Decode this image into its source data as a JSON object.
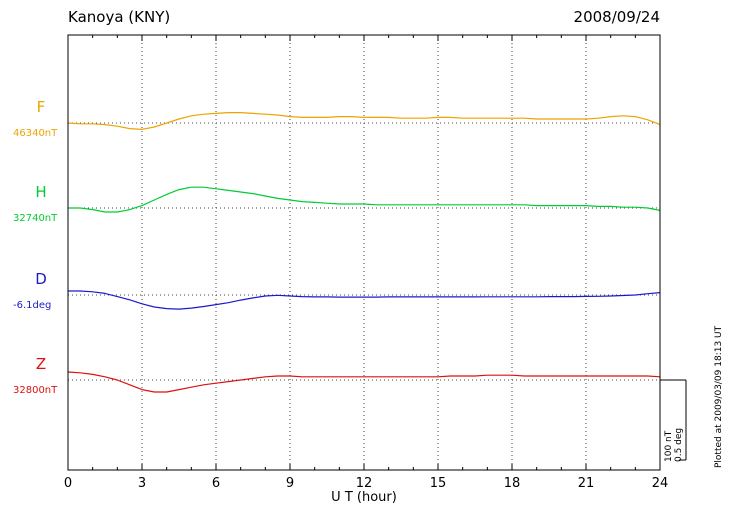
{
  "header": {
    "station": "Kanoya (KNY)",
    "date": "2008/09/24"
  },
  "footer": {
    "plotted_at": "Plotted at 2009/03/09 18:13 UT"
  },
  "scale_bar": {
    "nt": "100 nT",
    "deg": "0.5 deg"
  },
  "chart_data": {
    "type": "line",
    "title": "Kanoya (KNY) magnetogram 2008/09/24",
    "xlabel": "U T (hour)",
    "x_unit": "UT hour",
    "xlim": [
      0,
      24
    ],
    "x_ticks": [
      0,
      3,
      6,
      9,
      12,
      15,
      18,
      21,
      24
    ],
    "grid": "dotted vertical lines every 3 hours; dotted horizontal baseline per trace",
    "legend_position": "left-side colored labels",
    "values_are": "offsets from each trace baseline, nT for F/H/Z, degrees for D",
    "x": [
      0,
      0.5,
      1,
      1.5,
      2,
      2.5,
      3,
      3.5,
      4,
      4.5,
      5,
      5.5,
      6,
      6.5,
      7,
      7.5,
      8,
      8.5,
      9,
      9.5,
      10,
      10.5,
      11,
      11.5,
      12,
      12.5,
      13,
      13.5,
      14,
      14.5,
      15,
      15.5,
      16,
      16.5,
      17,
      17.5,
      18,
      18.5,
      19,
      19.5,
      20,
      20.5,
      21,
      21.5,
      22,
      22.5,
      23,
      23.5,
      24
    ],
    "series": [
      {
        "name": "F",
        "label": "F",
        "baseline_label": "46340nT",
        "baseline_value": 46340,
        "unit": "nT",
        "color": "#eda400",
        "values": [
          0,
          -1,
          -1,
          -2,
          -4,
          -7,
          -8,
          -5,
          0,
          5,
          9,
          11,
          12,
          13,
          13,
          12,
          11,
          10,
          8,
          7,
          7,
          7,
          8,
          8,
          7,
          7,
          7,
          6,
          6,
          6,
          7,
          7,
          6,
          6,
          6,
          6,
          6,
          6,
          5,
          5,
          5,
          5,
          5,
          6,
          8,
          9,
          8,
          4,
          -2
        ]
      },
      {
        "name": "H",
        "label": "H",
        "baseline_label": "32740nT",
        "baseline_value": 32740,
        "unit": "nT",
        "color": "#00cc33",
        "values": [
          0,
          0,
          -2,
          -5,
          -5,
          -2,
          3,
          10,
          17,
          23,
          26,
          26,
          24,
          22,
          20,
          18,
          15,
          12,
          10,
          8,
          7,
          6,
          5,
          5,
          5,
          4,
          4,
          4,
          4,
          4,
          4,
          4,
          4,
          4,
          4,
          4,
          4,
          4,
          3,
          3,
          3,
          3,
          3,
          2,
          2,
          1,
          1,
          0,
          -3
        ]
      },
      {
        "name": "D",
        "label": "D",
        "baseline_label": "-6.1deg",
        "baseline_value": -6.1,
        "unit": "deg",
        "color": "#1a1acc",
        "values": [
          0.025,
          0.025,
          0.02,
          0.01,
          -0.01,
          -0.03,
          -0.055,
          -0.075,
          -0.085,
          -0.088,
          -0.082,
          -0.072,
          -0.06,
          -0.048,
          -0.032,
          -0.018,
          -0.006,
          -0.002,
          -0.006,
          -0.01,
          -0.012,
          -0.012,
          -0.013,
          -0.013,
          -0.013,
          -0.013,
          -0.012,
          -0.012,
          -0.012,
          -0.012,
          -0.012,
          -0.012,
          -0.012,
          -0.012,
          -0.011,
          -0.011,
          -0.011,
          -0.011,
          -0.011,
          -0.01,
          -0.01,
          -0.01,
          -0.009,
          -0.008,
          -0.006,
          -0.003,
          0.0,
          0.008,
          0.015
        ]
      },
      {
        "name": "Z",
        "label": "Z",
        "baseline_label": "32800nT",
        "baseline_value": 32800,
        "unit": "nT",
        "color": "#dd1111",
        "values": [
          10,
          9,
          7,
          4,
          0,
          -6,
          -12,
          -15,
          -15,
          -12,
          -9,
          -6,
          -4,
          -2,
          0,
          2,
          4,
          5,
          5,
          4,
          4,
          4,
          4,
          4,
          4,
          4,
          4,
          4,
          4,
          4,
          4,
          5,
          5,
          5,
          6,
          6,
          6,
          5,
          5,
          5,
          5,
          5,
          5,
          5,
          5,
          5,
          5,
          5,
          4
        ]
      }
    ],
    "scale": {
      "nT_per_bar": 100,
      "deg_per_bar": 0.5
    }
  }
}
